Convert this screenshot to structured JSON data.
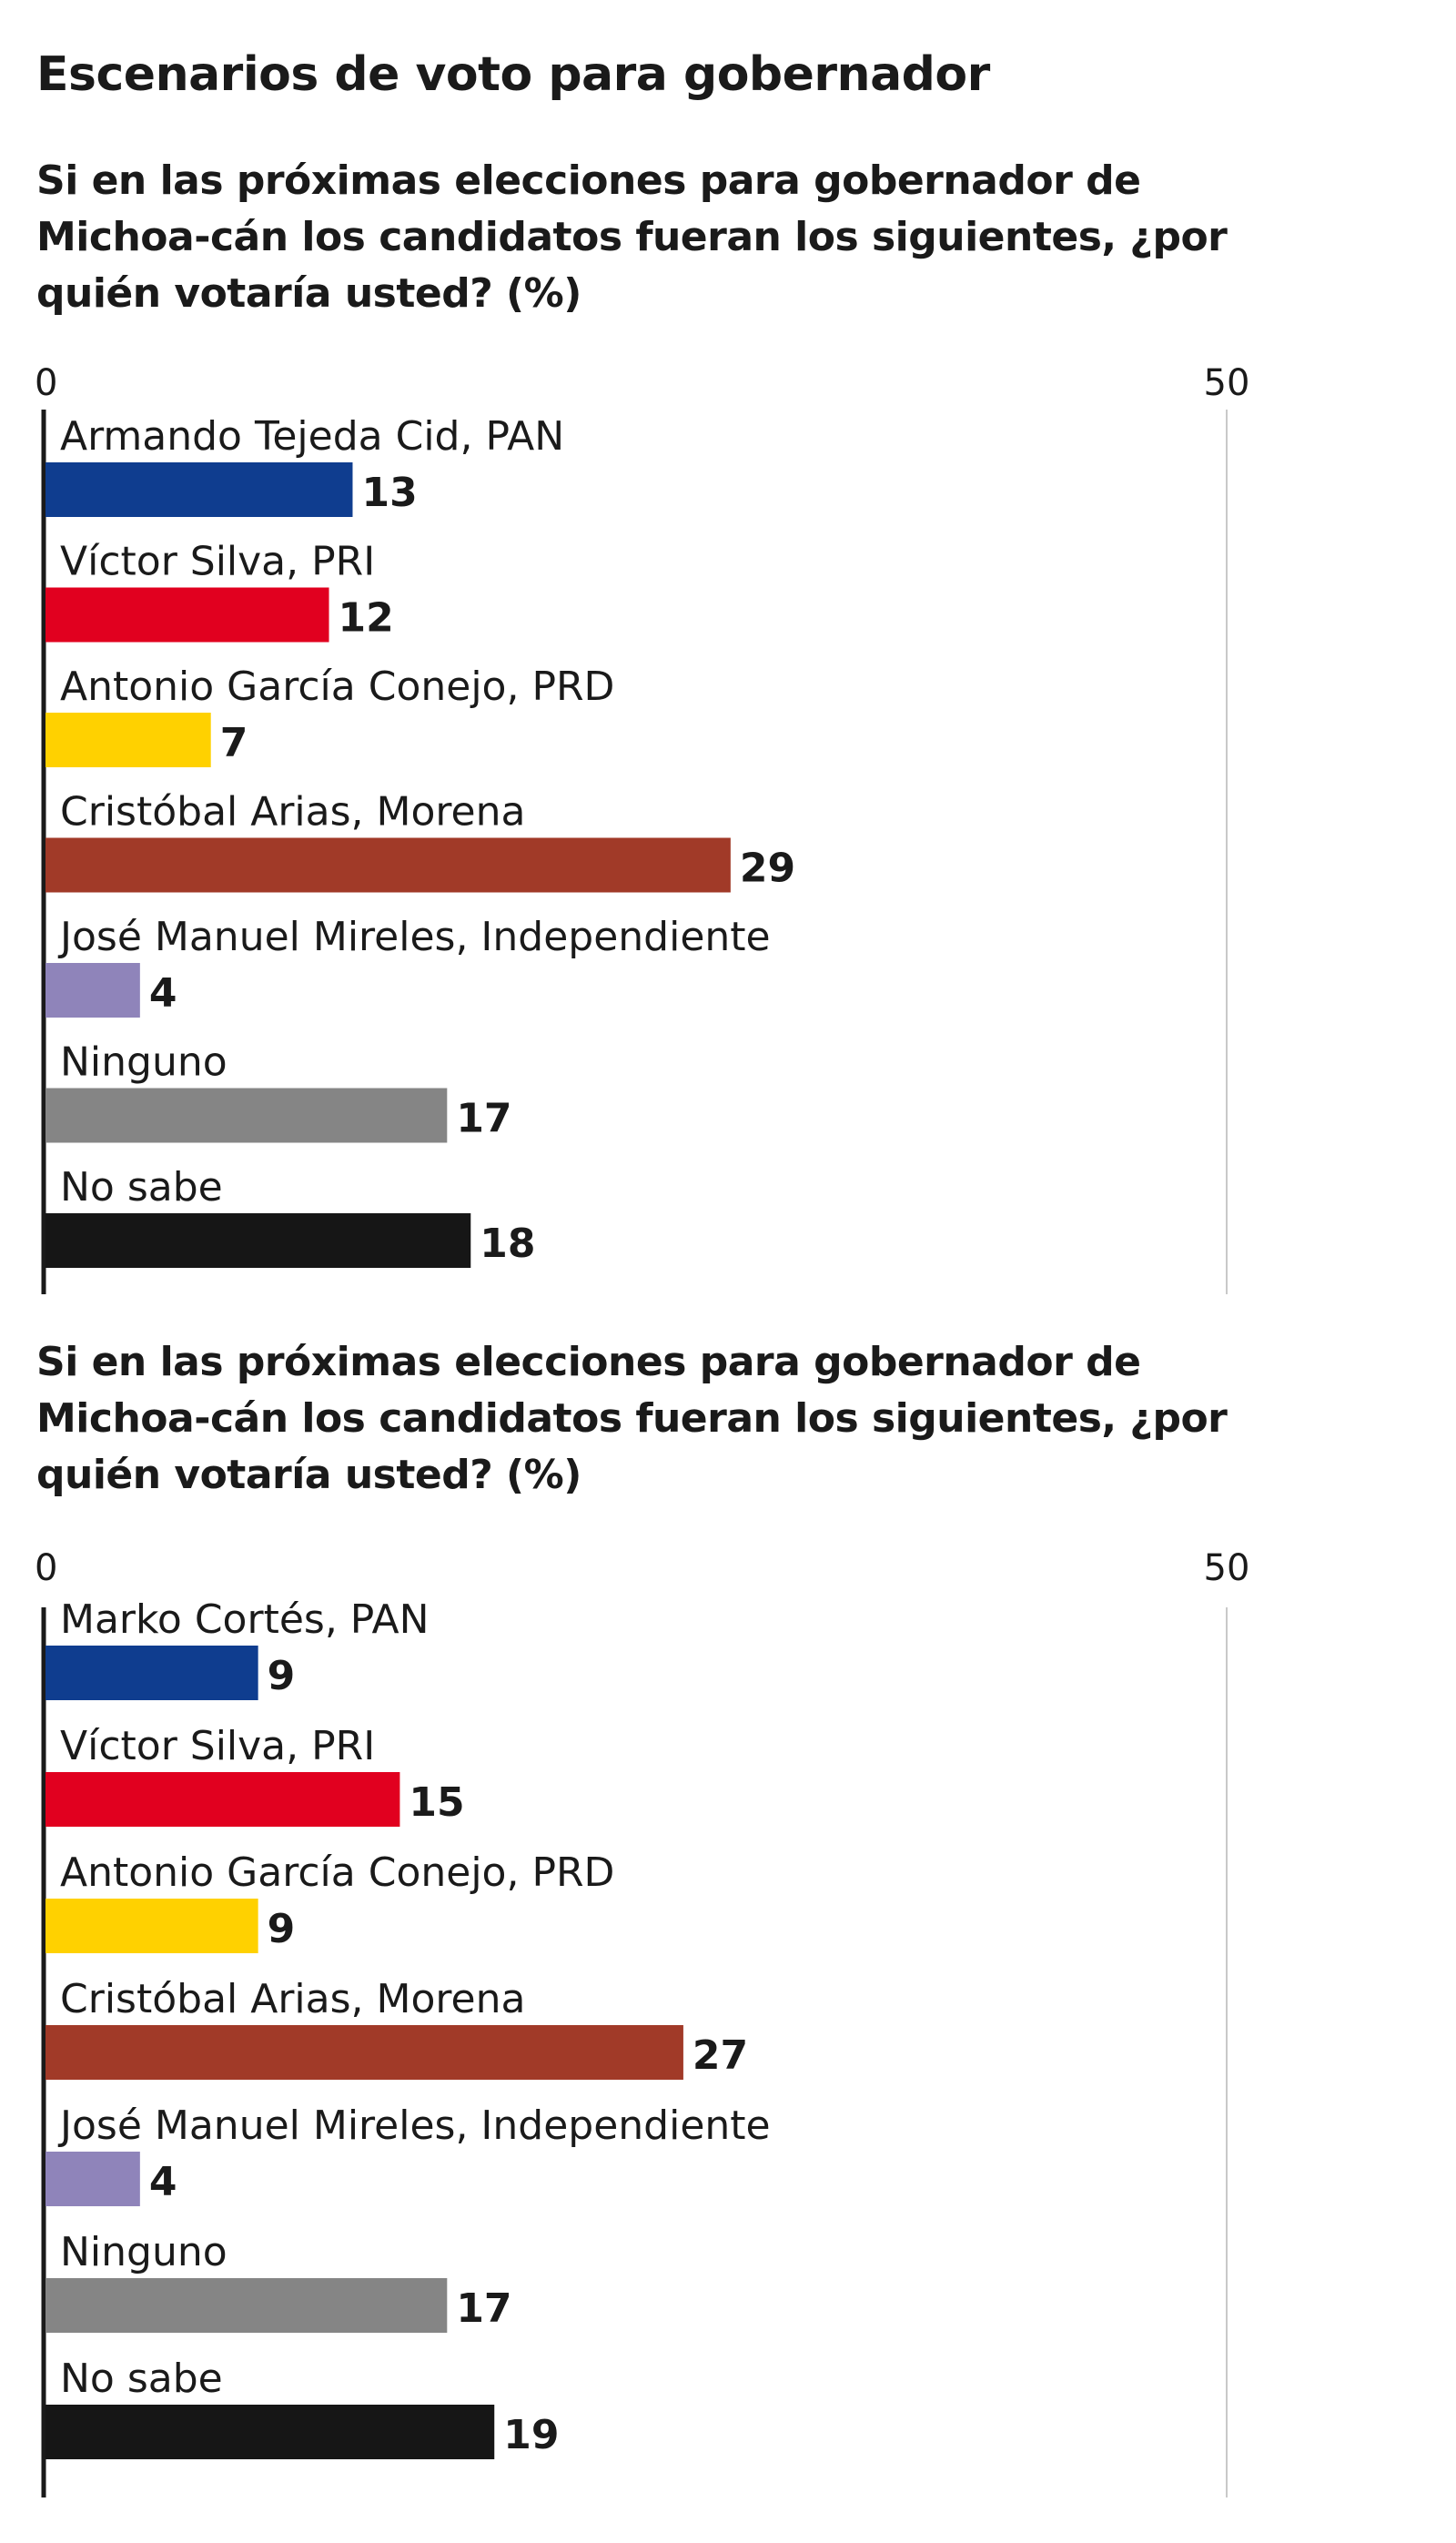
{
  "title": "Escenarios de voto para gobernador",
  "colors": {
    "PAN": "#0f3d8f",
    "PRI": "#e1001f",
    "PRD": "#ffd100",
    "Morena": "#a13a28",
    "Independiente": "#8f84ba",
    "Ninguno": "#858585",
    "No sabe": "#161616"
  },
  "chart_data": [
    {
      "type": "bar",
      "orientation": "horizontal",
      "subtitle": "Si en las próximas elecciones para gobernador de Michoa-cán los candidatos fueran los siguientes, ¿por quién votaría usted? (%)",
      "xlim": [
        0,
        50
      ],
      "ticks": [
        "0",
        "50"
      ],
      "grid": false,
      "categories": [
        "Armando Tejeda Cid, PAN",
        "Víctor Silva, PRI",
        "Antonio García Conejo, PRD",
        "Cristóbal Arias, Morena",
        "José Manuel Mireles, Independiente",
        "Ninguno",
        "No sabe"
      ],
      "values": [
        13,
        12,
        7,
        29,
        4,
        17,
        18
      ],
      "bar_colors": [
        "#0f3d8f",
        "#e1001f",
        "#ffd100",
        "#a13a28",
        "#8f84ba",
        "#858585",
        "#161616"
      ]
    },
    {
      "type": "bar",
      "orientation": "horizontal",
      "subtitle": "Si en las próximas elecciones para gobernador de Michoa-cán los candidatos fueran los siguientes, ¿por quién votaría usted? (%)",
      "xlim": [
        0,
        50
      ],
      "ticks": [
        "0",
        "50"
      ],
      "grid": false,
      "categories": [
        "Marko Cortés, PAN",
        "Víctor Silva, PRI",
        "Antonio García Conejo, PRD",
        "Cristóbal Arias, Morena",
        "José Manuel Mireles, Independiente",
        "Ninguno",
        "No sabe"
      ],
      "values": [
        9,
        15,
        9,
        27,
        4,
        17,
        19
      ],
      "bar_colors": [
        "#0f3d8f",
        "#e1001f",
        "#ffd100",
        "#a13a28",
        "#8f84ba",
        "#858585",
        "#161616"
      ]
    }
  ]
}
